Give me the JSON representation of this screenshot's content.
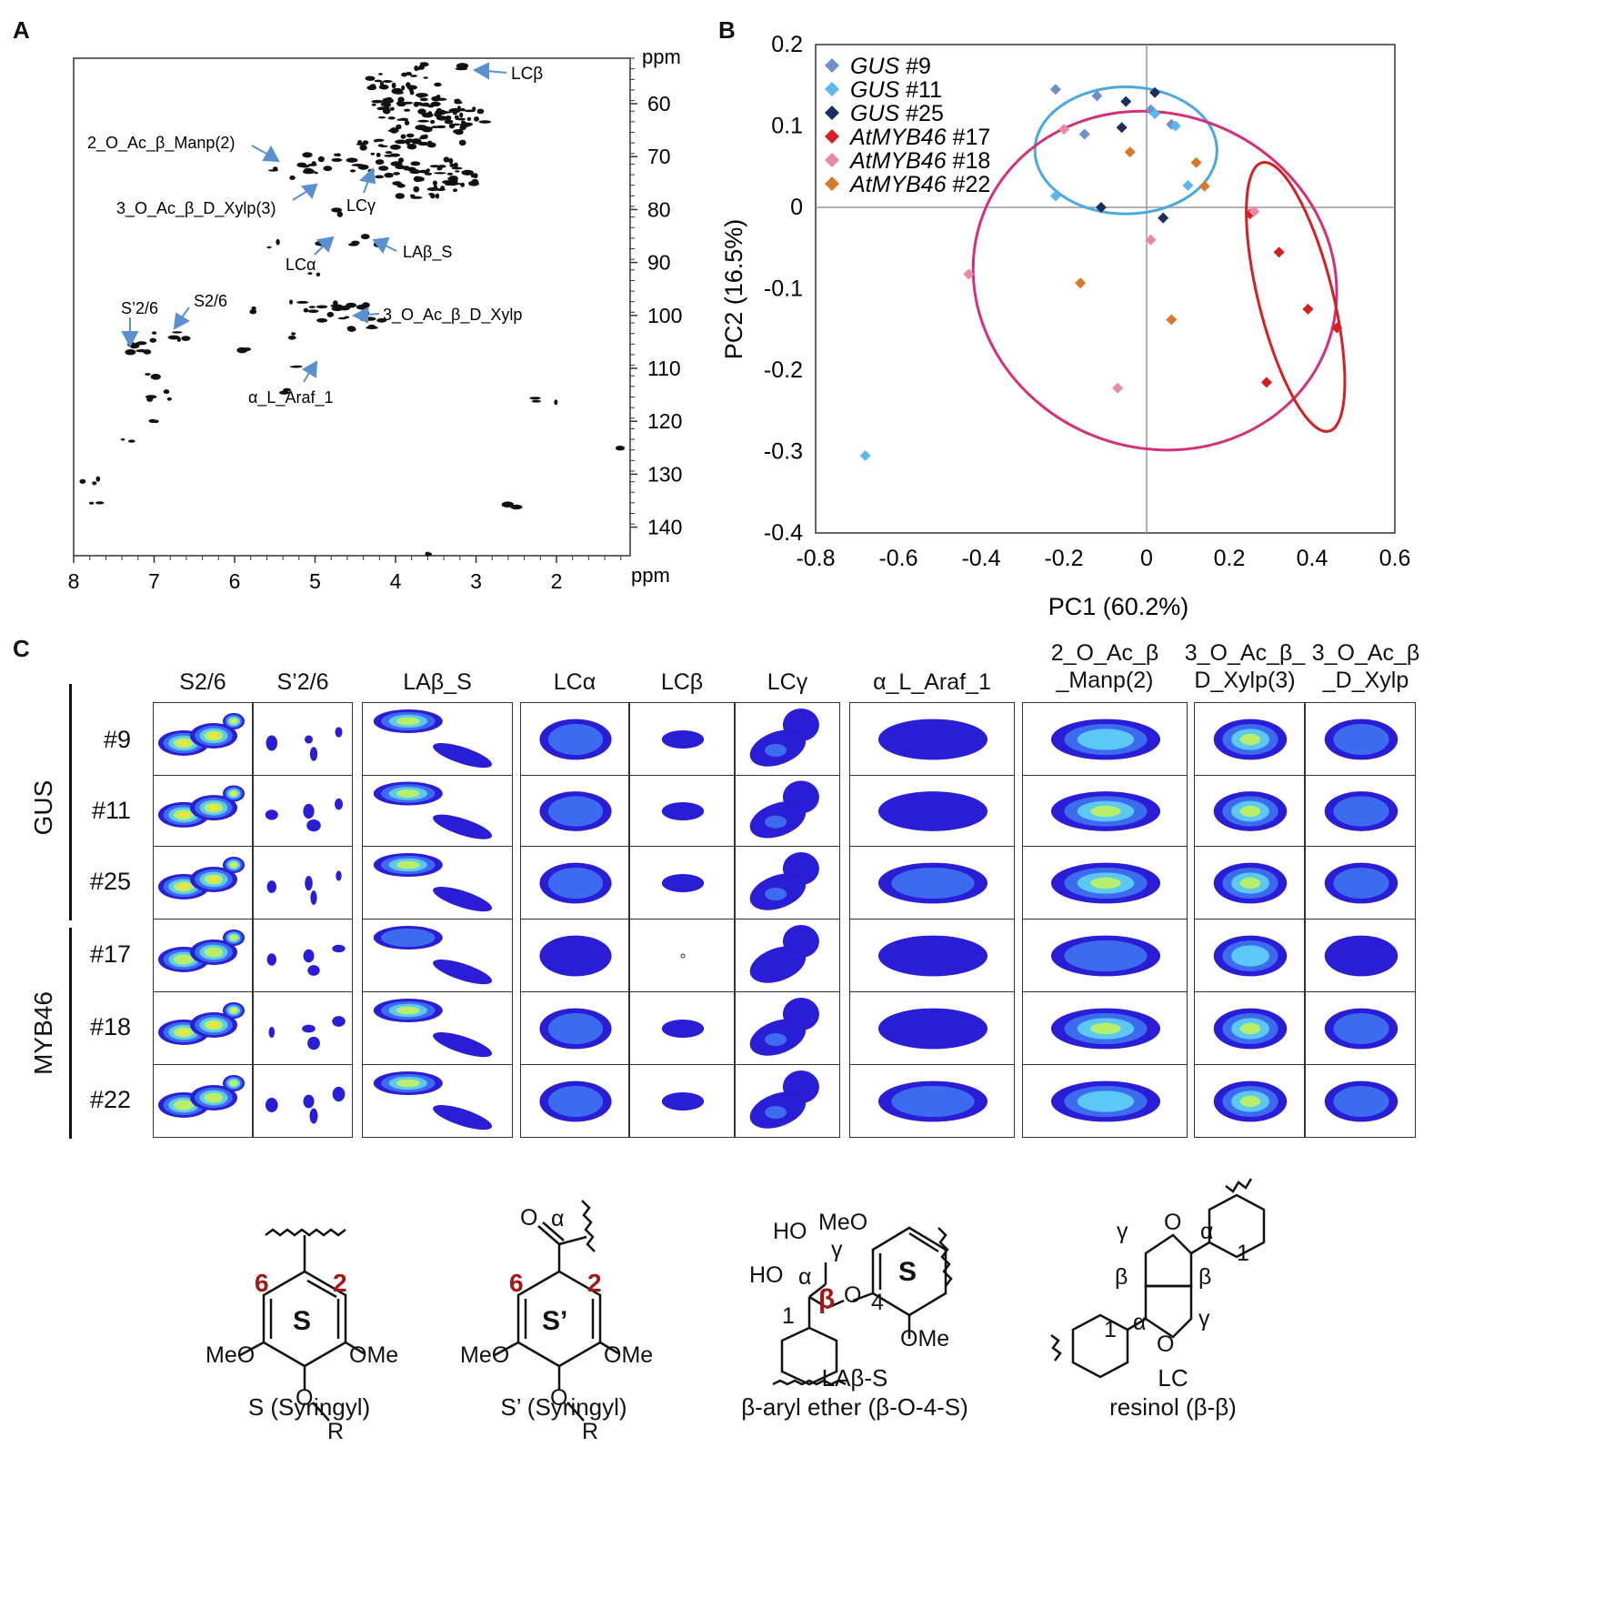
{
  "panels": {
    "a": "A",
    "b": "B",
    "c": "C"
  },
  "nmr": {
    "ppm_top": "ppm",
    "ppm_bottom": "ppm",
    "y_ticks": [
      "60",
      "70",
      "80",
      "90",
      "100",
      "110",
      "120",
      "130",
      "140"
    ],
    "x_ticks": [
      "8",
      "7",
      "6",
      "5",
      "4",
      "3",
      "2"
    ],
    "labels": [
      "LCβ",
      "2_O_Ac_β_Manp(2)",
      "3_O_Ac_β_D_Xylp(3)",
      "LCγ",
      "LAβ_S",
      "LCα",
      "S’2/6",
      "S2/6",
      "3_O_Ac_β_D_Xylp",
      "α_L_Araf_1"
    ]
  },
  "chart_data": {
    "type": "scatter",
    "title": "",
    "xlabel": "PC1 (60.2%)",
    "ylabel": "PC2 (16.5%)",
    "xlim": [
      -0.8,
      0.6
    ],
    "ylim": [
      -0.4,
      0.2
    ],
    "x_ticks": [
      "-0.8",
      "-0.6",
      "-0.4",
      "-0.2",
      "0",
      "0.2",
      "0.4",
      "0.6"
    ],
    "y_ticks": [
      "0.2",
      "0.1",
      "0",
      "-0.1",
      "-0.2",
      "-0.3",
      "-0.4"
    ],
    "legend_position": "top-left",
    "series": [
      {
        "name": "GUS",
        "num": " #9",
        "color": "#6f8fc7",
        "points": [
          [
            -0.22,
            0.145
          ],
          [
            -0.12,
            0.137
          ],
          [
            -0.15,
            0.09
          ],
          [
            0.01,
            0.12
          ],
          [
            0.06,
            0.102
          ]
        ]
      },
      {
        "name": "GUS",
        "num": " #11",
        "color": "#5ab9ea",
        "points": [
          [
            -0.22,
            0.014
          ],
          [
            0.02,
            0.115
          ],
          [
            0.07,
            0.1
          ],
          [
            0.1,
            0.027
          ],
          [
            -0.68,
            -0.305
          ]
        ]
      },
      {
        "name": "GUS",
        "num": " #25",
        "color": "#1b2f5e",
        "points": [
          [
            -0.11,
            0.0
          ],
          [
            -0.05,
            0.13
          ],
          [
            0.02,
            0.141
          ],
          [
            0.04,
            -0.013
          ],
          [
            -0.06,
            0.098
          ]
        ]
      },
      {
        "name": "AtMYB46",
        "num": " #17",
        "color": "#d42020",
        "points": [
          [
            0.25,
            -0.008
          ],
          [
            0.32,
            -0.055
          ],
          [
            0.39,
            -0.125
          ],
          [
            0.46,
            -0.148
          ],
          [
            0.29,
            -0.215
          ]
        ]
      },
      {
        "name": "AtMYB46",
        "num": " #18",
        "color": "#e88aa5",
        "points": [
          [
            -0.2,
            0.096
          ],
          [
            0.26,
            -0.005
          ],
          [
            0.01,
            -0.04
          ],
          [
            -0.43,
            -0.082
          ],
          [
            -0.07,
            -0.222
          ]
        ]
      },
      {
        "name": "AtMYB46",
        "num": " #22",
        "color": "#d8782a",
        "points": [
          [
            -0.04,
            0.068
          ],
          [
            0.12,
            0.055
          ],
          [
            0.14,
            0.026
          ],
          [
            -0.16,
            -0.093
          ],
          [
            0.06,
            -0.138
          ]
        ]
      }
    ]
  },
  "grid": {
    "columns": [
      "S2/6",
      "S’2/6",
      "LAβ_S",
      "LCα",
      "LCβ",
      "LCγ",
      "α_L_Araf_1"
    ],
    "col_multi": [
      {
        "line1": "2_O_Ac_β",
        "line2": "_Manp(2)"
      },
      {
        "line1": "3_O_Ac_β_",
        "line2": "D_Xylp(3)"
      },
      {
        "line1": "3_O_Ac_β",
        "line2": "_D_Xylp"
      }
    ],
    "groups": [
      "GUS",
      "MYB46"
    ],
    "rows": [
      "#9",
      "#11",
      "#25",
      "#17",
      "#18",
      "#22"
    ]
  },
  "structures": {
    "s": {
      "title": "S (Syringyl)",
      "ring": "S",
      "n6": "6",
      "n2": "2",
      "meo": "MeO",
      "ome": "OMe",
      "o": "O",
      "r": "R"
    },
    "sp": {
      "title": "S’ (Syringyl)",
      "ring": "S’",
      "n6": "6",
      "n2": "2",
      "meo": "MeO",
      "ome": "OMe",
      "o": "O",
      "r": "R",
      "oc": "O",
      "alpha": "α"
    },
    "lab": {
      "title1": "LAβ-S",
      "title2": "β-aryl ether (β-O-4-S)",
      "ho1": "HO",
      "meo": "MeO",
      "gamma": "γ",
      "ho2": "HO",
      "alpha": "α",
      "beta": "β",
      "o": "O",
      "four": "4",
      "one": "1",
      "ring": "S",
      "ome": "OMe"
    },
    "lc": {
      "title1": "LC",
      "title2": "resinol (β-β)",
      "gamma1": "γ",
      "o1": "O",
      "alpha1": "α",
      "one1": "1",
      "beta1": "β",
      "beta2": "β",
      "gamma2": "γ",
      "one2": "1",
      "alpha2": "α",
      "o2": "O"
    }
  }
}
